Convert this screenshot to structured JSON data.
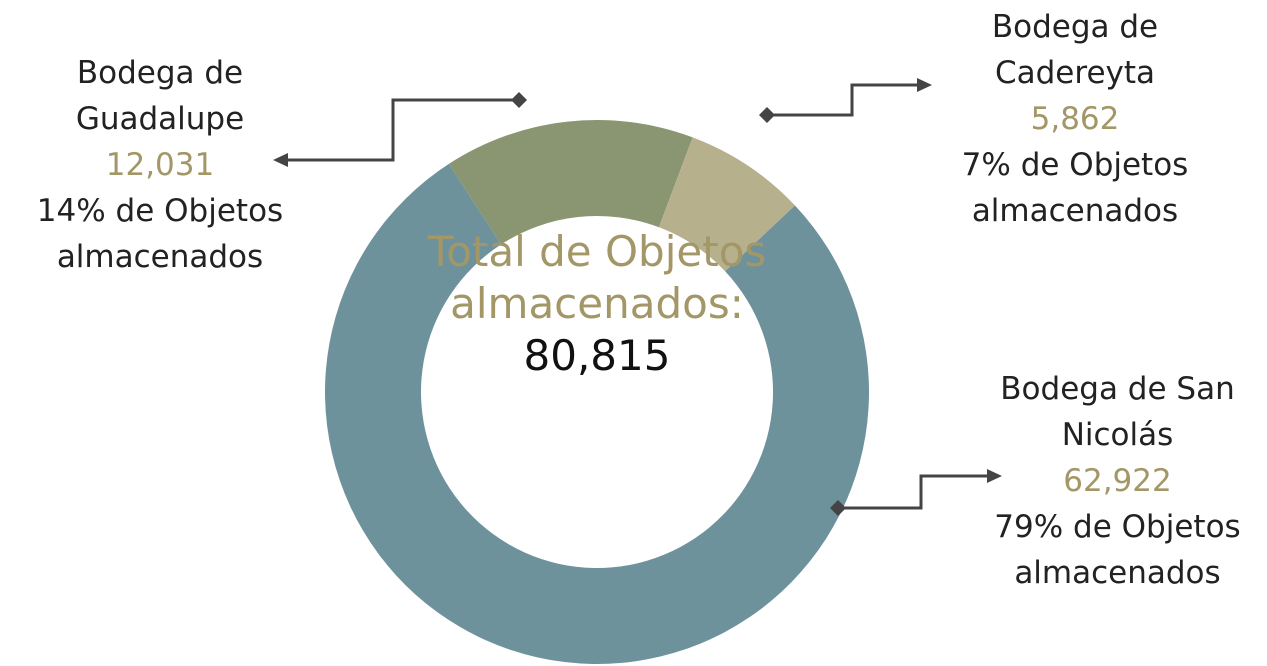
{
  "chart_data": {
    "type": "donut",
    "categories": [
      "Bodega de Guadalupe",
      "Bodega de Cadereyta",
      "Bodega de San Nicolás"
    ],
    "values": [
      12031,
      5862,
      62922
    ],
    "value_labels": [
      "12,031",
      "5,862",
      "62,922"
    ],
    "percent_labels": [
      "14% de Objetos almacenados",
      "7% de Objetos almacenados",
      "79% de Objetos almacenados"
    ],
    "colors": [
      "#8a9672",
      "#b6b08d",
      "#6e929c"
    ],
    "center_label": "Total de Objetos almacenados:",
    "total_label": "80,815"
  }
}
